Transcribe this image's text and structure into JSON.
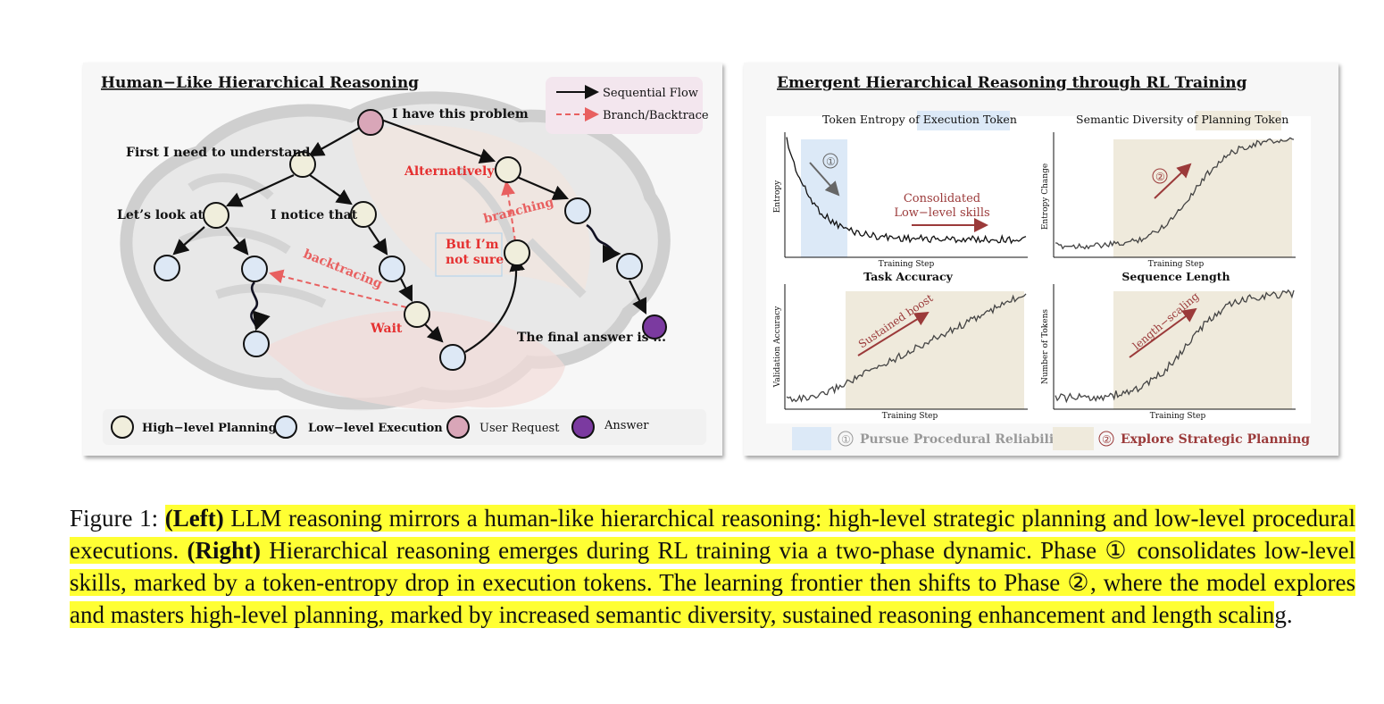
{
  "left": {
    "title": "Human−Like Hierarchical Reasoning",
    "legend_flow": {
      "sequential": "Sequential Flow",
      "branch": "Branch/Backtrace"
    },
    "labels": {
      "problem": "I have this problem",
      "understand": "First I need to understand",
      "look": "Let’s look at",
      "notice": "I notice that",
      "alternatively": "Alternatively",
      "branching": "branching",
      "notsure1": "But I’m",
      "notsure2": "not sure",
      "backtracing": "backtracing",
      "wait": "Wait",
      "final": "The final answer is ..."
    },
    "legend_nodes": {
      "planning": "High−level Planning",
      "execution": "Low−level Execution",
      "request": "User Request",
      "answer": "Answer"
    },
    "colors": {
      "planning": "#f0eedc",
      "execution": "#dde8f5",
      "request": "#d9a6b8",
      "answer": "#7b3aa0",
      "accent_red": "#e53030"
    }
  },
  "right": {
    "title": "Emergent Hierarchical Reasoning through RL Training",
    "charts": {
      "entropy": {
        "title_pre": "Token Entropy of ",
        "title_hl": "Execution Token",
        "ylabel": "Entropy",
        "xlabel": "Training Step",
        "phase": "①",
        "annotation1": "Consolidated",
        "annotation2": "Low−level skills"
      },
      "diversity": {
        "title_pre": "Semantic Diversity of ",
        "title_hl": "Planning Token",
        "ylabel": "Entropy Change",
        "xlabel": "Training Step",
        "phase": "②"
      },
      "accuracy": {
        "title": "Task Accuracy",
        "ylabel": "Validation Accuracy",
        "xlabel": "Training Step",
        "annotation": "Sustained boost"
      },
      "length": {
        "title": "Sequence Length",
        "ylabel": "Number of Tokens",
        "xlabel": "Training Step",
        "annotation": "length−scaling"
      }
    },
    "legend": {
      "phase1_num": "①",
      "phase1": "Pursue Procedural Reliability",
      "phase2_num": "②",
      "phase2": "Explore Strategic Planning"
    },
    "colors": {
      "phase1": "#dce9f7",
      "phase2": "#efeadc",
      "arrow": "#9b3a3a"
    }
  },
  "caption": {
    "prefix": "Figure 1: ",
    "left_label": "(Left)",
    "s1": " LLM reasoning mirrors a human-like hierarchical reasoning: high-level strategic planning and low-level procedural executions. ",
    "right_label": "(Right)",
    "s2": " Hierarchical reasoning emerges during RL training via a two-phase dynamic. Phase ① consolidates low-level skills, marked by a token-entropy drop in execution tokens. The learning frontier then shifts to Phase ②, where the model explores and masters high-level planning, marked by increased semantic diversity, sustained reasoning enhancement and length scalin",
    "tail": "g."
  }
}
